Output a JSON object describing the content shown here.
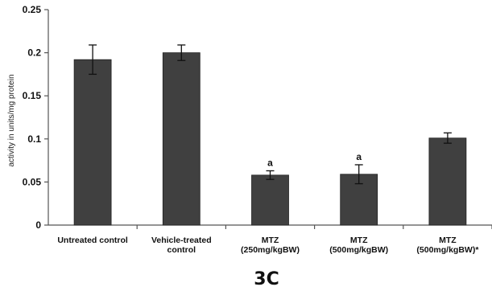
{
  "chart_data": {
    "type": "bar",
    "categories": [
      [
        "Untreated control"
      ],
      [
        "Vehicle-treated",
        "control"
      ],
      [
        "MTZ",
        "(250mg/kgBW)"
      ],
      [
        "MTZ",
        "(500mg/kgBW)"
      ],
      [
        "MTZ",
        "(500mg/kgBW)*"
      ]
    ],
    "series": [
      {
        "values": [
          0.192,
          0.2,
          0.058,
          0.059,
          0.101
        ],
        "errors": [
          0.017,
          0.009,
          0.005,
          0.011,
          0.006
        ],
        "annotations": [
          "",
          "",
          "a",
          "a",
          ""
        ],
        "color": "#404040"
      }
    ],
    "ylabel": "activity in units/mg protein",
    "xlabel": "",
    "ylim": [
      0,
      0.25
    ],
    "yticks": [
      0,
      0.05,
      0.1,
      0.15,
      0.2,
      0.25
    ],
    "ytick_labels": [
      "0",
      "0.05",
      "0.1",
      "0.15",
      "0.2",
      "0.25"
    ],
    "grid": false,
    "legend": "none",
    "panel_label": "3C"
  }
}
